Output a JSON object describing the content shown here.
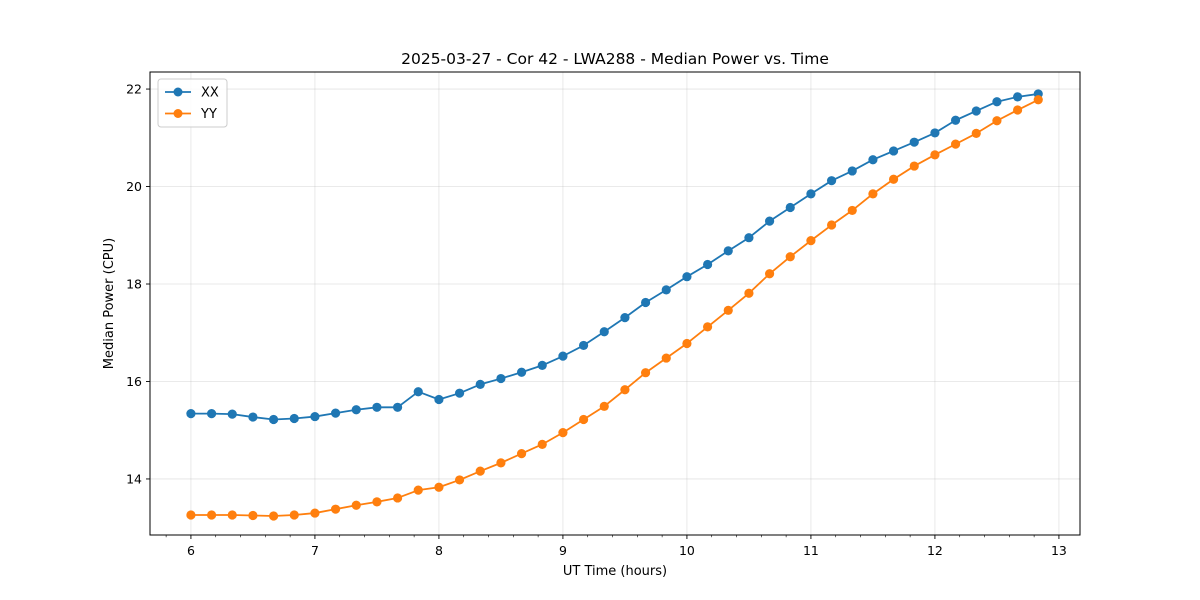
{
  "chart_data": {
    "type": "line",
    "title": "2025-03-27 - Cor 42 - LWA288 - Median Power vs. Time",
    "xlabel": "UT Time (hours)",
    "ylabel": "Median Power (CPU)",
    "xlim": [
      5.67,
      13.17
    ],
    "ylim": [
      12.85,
      22.35
    ],
    "xticks": [
      6,
      7,
      8,
      9,
      10,
      11,
      12,
      13
    ],
    "yticks": [
      14,
      16,
      18,
      20,
      22
    ],
    "grid": true,
    "legend_position": "upper-left",
    "x": [
      6.0,
      6.1667,
      6.3333,
      6.5,
      6.6667,
      6.8333,
      7.0,
      7.1667,
      7.3333,
      7.5,
      7.6667,
      7.8333,
      8.0,
      8.1667,
      8.3333,
      8.5,
      8.6667,
      8.8333,
      9.0,
      9.1667,
      9.3333,
      9.5,
      9.6667,
      9.8333,
      10.0,
      10.1667,
      10.3333,
      10.5,
      10.6667,
      10.8333,
      11.0,
      11.1667,
      11.3333,
      11.5,
      11.6667,
      11.8333,
      12.0,
      12.1667,
      12.3333,
      12.5,
      12.6667,
      12.8333
    ],
    "series": [
      {
        "name": "XX",
        "color": "#1f77b4",
        "values": [
          15.34,
          15.34,
          15.33,
          15.27,
          15.22,
          15.24,
          15.28,
          15.35,
          15.42,
          15.47,
          15.47,
          15.79,
          15.63,
          15.76,
          15.94,
          16.06,
          16.19,
          16.33,
          16.52,
          16.74,
          17.02,
          17.31,
          17.62,
          17.88,
          18.15,
          18.4,
          18.68,
          18.95,
          19.29,
          19.57,
          19.85,
          20.12,
          20.32,
          20.55,
          20.73,
          20.91,
          21.1,
          21.36,
          21.55,
          21.74,
          21.84,
          21.9
        ]
      },
      {
        "name": "YY",
        "color": "#ff7f0e",
        "values": [
          13.26,
          13.26,
          13.26,
          13.25,
          13.24,
          13.26,
          13.3,
          13.38,
          13.46,
          13.53,
          13.61,
          13.77,
          13.83,
          13.98,
          14.16,
          14.33,
          14.52,
          14.71,
          14.95,
          15.22,
          15.49,
          15.83,
          16.18,
          16.48,
          16.78,
          17.12,
          17.46,
          17.81,
          18.21,
          18.56,
          18.89,
          19.21,
          19.51,
          19.85,
          20.15,
          20.42,
          20.65,
          20.87,
          21.09,
          21.35,
          21.57,
          21.78
        ]
      }
    ]
  }
}
